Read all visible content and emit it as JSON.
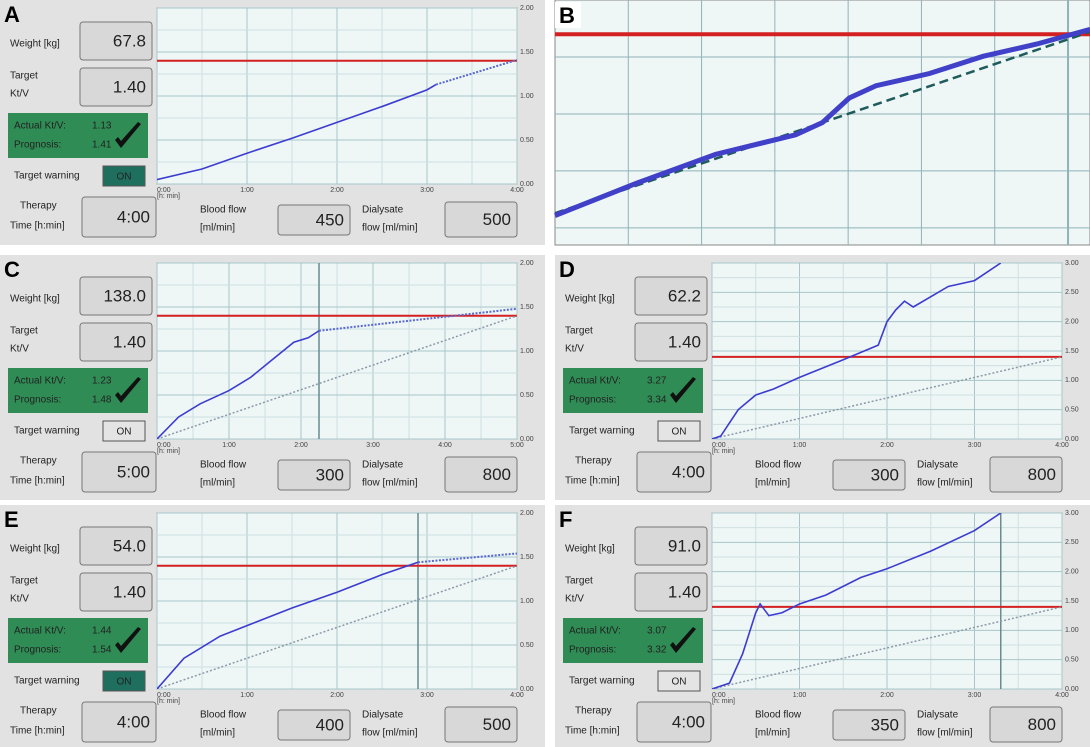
{
  "panels": [
    {
      "letter": "A",
      "labels": {
        "weight": "Weight [kg]",
        "target": "Target",
        "ktv": "Kt/V",
        "actual": "Actual Kt/V:",
        "prognosis": "Prognosis:",
        "warning": "Target warning",
        "therapy": "Therapy",
        "time": "Time [h:min]",
        "blood": "Blood flow",
        "blood_unit": "[ml/min]",
        "dialysate": "Dialysate",
        "dialysate_unit": "flow [ml/min]"
      },
      "values": {
        "weight": "67.8",
        "target": "1.40",
        "actual": "1.13",
        "prognosis": "1.41",
        "warning": "ON",
        "therapy": "4:00",
        "blood": "450",
        "dialysate": "500"
      },
      "warning_fill": "#1f6f5f",
      "chart": {
        "xlim": [
          0,
          4
        ],
        "ylim": [
          0,
          2
        ],
        "xticks": [
          {
            "value": 0,
            "label": "0:00"
          },
          {
            "value": 1,
            "label": "1:00"
          },
          {
            "value": 2,
            "label": "2:00"
          },
          {
            "value": 3,
            "label": "3:00"
          },
          {
            "value": 4,
            "label": "4:00"
          }
        ],
        "x_unit": "[h: min]",
        "yticks": [
          {
            "value": 0,
            "label": "0.00"
          },
          {
            "value": 0.5,
            "label": "0.50"
          },
          {
            "value": 1,
            "label": "1.00"
          },
          {
            "value": 1.5,
            "label": "1.50"
          },
          {
            "value": 2,
            "label": "2.00"
          }
        ],
        "target": 1.4,
        "actual": {
          "x": [
            0,
            0.5,
            1,
            1.5,
            2,
            2.5,
            3,
            3.1
          ],
          "y": [
            0.05,
            0.17,
            0.35,
            0.52,
            0.7,
            0.88,
            1.07,
            1.13
          ]
        },
        "projection": {
          "x": [
            3.1,
            4
          ],
          "y": [
            1.13,
            1.41
          ]
        }
      }
    },
    {
      "letter": "B",
      "chart": {
        "xlim": [
          0,
          1
        ],
        "ylim": [
          0,
          1
        ],
        "target": 0.86,
        "actual": {
          "x": [
            0,
            0.15,
            0.3,
            0.45,
            0.5,
            0.55,
            0.6,
            0.7,
            0.8,
            0.9,
            1
          ],
          "y": [
            0.12,
            0.25,
            0.37,
            0.45,
            0.5,
            0.6,
            0.65,
            0.7,
            0.77,
            0.82,
            0.88
          ]
        },
        "projection": {
          "x": [
            0,
            1
          ],
          "y": [
            0.13,
            0.87
          ]
        }
      }
    },
    {
      "letter": "C",
      "labels": {
        "weight": "Weight [kg]",
        "target": "Target",
        "ktv": "Kt/V",
        "actual": "Actual Kt/V:",
        "prognosis": "Prognosis:",
        "warning": "Target warning",
        "therapy": "Therapy",
        "time": "Time [h:min]",
        "blood": "Blood flow",
        "blood_unit": "[ml/min]",
        "dialysate": "Dialysate",
        "dialysate_unit": "flow [ml/min]"
      },
      "values": {
        "weight": "138.0",
        "target": "1.40",
        "actual": "1.23",
        "prognosis": "1.48",
        "warning": "ON",
        "therapy": "5:00",
        "blood": "300",
        "dialysate": "800"
      },
      "warning_fill": "#e4e4e4",
      "chart": {
        "xlim": [
          0,
          5
        ],
        "ylim": [
          0,
          2
        ],
        "xticks": [
          {
            "value": 0,
            "label": "0:00"
          },
          {
            "value": 1,
            "label": "1:00"
          },
          {
            "value": 2,
            "label": "2:00"
          },
          {
            "value": 3,
            "label": "3:00"
          },
          {
            "value": 4,
            "label": "4:00"
          },
          {
            "value": 5,
            "label": "5:00"
          }
        ],
        "x_unit": "[h: min]",
        "yticks": [
          {
            "value": 0,
            "label": "0.00"
          },
          {
            "value": 0.5,
            "label": "0.50"
          },
          {
            "value": 1,
            "label": "1.00"
          },
          {
            "value": 1.5,
            "label": "1.50"
          },
          {
            "value": 2,
            "label": "2.00"
          }
        ],
        "target": 1.4,
        "cursor": 2.25,
        "actual": {
          "x": [
            0,
            0.3,
            0.6,
            1,
            1.3,
            1.6,
            1.9,
            2.1,
            2.25
          ],
          "y": [
            0,
            0.25,
            0.4,
            0.55,
            0.7,
            0.9,
            1.1,
            1.15,
            1.23
          ]
        },
        "projection": {
          "x": [
            2.25,
            5
          ],
          "y": [
            1.23,
            1.48
          ]
        },
        "reference": {
          "x": [
            0,
            5
          ],
          "y": [
            0,
            1.4
          ]
        }
      }
    },
    {
      "letter": "D",
      "labels": {
        "weight": "Weight [kg]",
        "target": "Target",
        "ktv": "Kt/V",
        "actual": "Actual Kt/V:",
        "prognosis": "Prognosis:",
        "warning": "Target warning",
        "therapy": "Therapy",
        "time": "Time [h:min]",
        "blood": "Blood flow",
        "blood_unit": "[ml/min]",
        "dialysate": "Dialysate",
        "dialysate_unit": "flow [ml/min]"
      },
      "values": {
        "weight": "62.2",
        "target": "1.40",
        "actual": "3.27",
        "prognosis": "3.34",
        "warning": "ON",
        "therapy": "4:00",
        "blood": "300",
        "dialysate": "800"
      },
      "warning_fill": "#e4e4e4",
      "chart": {
        "xlim": [
          0,
          4
        ],
        "ylim": [
          0,
          3
        ],
        "xticks": [
          {
            "value": 0,
            "label": "0:00"
          },
          {
            "value": 1,
            "label": "1:00"
          },
          {
            "value": 2,
            "label": "2:00"
          },
          {
            "value": 3,
            "label": "3:00"
          },
          {
            "value": 4,
            "label": "4:00"
          }
        ],
        "x_unit": "[h: min]",
        "yticks": [
          {
            "value": 0,
            "label": "0.00"
          },
          {
            "value": 0.5,
            "label": "0.50"
          },
          {
            "value": 1,
            "label": "1.00"
          },
          {
            "value": 1.5,
            "label": "1.50"
          },
          {
            "value": 2,
            "label": "2.00"
          },
          {
            "value": 2.5,
            "label": "2.50"
          },
          {
            "value": 3,
            "label": "3.00"
          }
        ],
        "target": 1.4,
        "actual": {
          "x": [
            0,
            0.1,
            0.3,
            0.5,
            0.7,
            1,
            1.5,
            1.9,
            2,
            2.1,
            2.2,
            2.3,
            2.7,
            3,
            3.3
          ],
          "y": [
            0,
            0.05,
            0.5,
            0.75,
            0.85,
            1.05,
            1.35,
            1.6,
            2,
            2.2,
            2.35,
            2.25,
            2.6,
            2.7,
            3
          ]
        },
        "reference": {
          "x": [
            0,
            4
          ],
          "y": [
            0,
            1.4
          ]
        }
      }
    },
    {
      "letter": "E",
      "labels": {
        "weight": "Weight [kg]",
        "target": "Target",
        "ktv": "Kt/V",
        "actual": "Actual Kt/V:",
        "prognosis": "Prognosis:",
        "warning": "Target warning",
        "therapy": "Therapy",
        "time": "Time [h:min]",
        "blood": "Blood flow",
        "blood_unit": "[ml/min]",
        "dialysate": "Dialysate",
        "dialysate_unit": "flow [ml/min]"
      },
      "values": {
        "weight": "54.0",
        "target": "1.40",
        "actual": "1.44",
        "prognosis": "1.54",
        "warning": "ON",
        "therapy": "4:00",
        "blood": "400",
        "dialysate": "500"
      },
      "warning_fill": "#1f6f5f",
      "chart": {
        "xlim": [
          0,
          4
        ],
        "ylim": [
          0,
          2
        ],
        "xticks": [
          {
            "value": 0,
            "label": "0:00"
          },
          {
            "value": 1,
            "label": "1:00"
          },
          {
            "value": 2,
            "label": "2:00"
          },
          {
            "value": 3,
            "label": "3:00"
          },
          {
            "value": 4,
            "label": "4:00"
          }
        ],
        "x_unit": "[h: min]",
        "yticks": [
          {
            "value": 0,
            "label": "0.00"
          },
          {
            "value": 0.5,
            "label": "0.50"
          },
          {
            "value": 1,
            "label": "1.00"
          },
          {
            "value": 1.5,
            "label": "1.50"
          },
          {
            "value": 2,
            "label": "2.00"
          }
        ],
        "target": 1.4,
        "cursor": 2.9,
        "actual": {
          "x": [
            0,
            0.3,
            0.7,
            1,
            1.5,
            2,
            2.5,
            2.9
          ],
          "y": [
            0,
            0.35,
            0.6,
            0.72,
            0.92,
            1.1,
            1.3,
            1.44
          ]
        },
        "projection": {
          "x": [
            2.9,
            4
          ],
          "y": [
            1.44,
            1.54
          ]
        },
        "reference": {
          "x": [
            0,
            4
          ],
          "y": [
            0,
            1.4
          ]
        }
      }
    },
    {
      "letter": "F",
      "labels": {
        "weight": "Weight [kg]",
        "target": "Target",
        "ktv": "Kt/V",
        "actual": "Actual Kt/V:",
        "prognosis": "Prognosis:",
        "warning": "Target warning",
        "therapy": "Therapy",
        "time": "Time [h:min]",
        "blood": "Blood flow",
        "blood_unit": "[ml/min]",
        "dialysate": "Dialysate",
        "dialysate_unit": "flow [ml/min]"
      },
      "values": {
        "weight": "91.0",
        "target": "1.40",
        "actual": "3.07",
        "prognosis": "3.32",
        "warning": "ON",
        "therapy": "4:00",
        "blood": "350",
        "dialysate": "800"
      },
      "warning_fill": "#e4e4e4",
      "chart": {
        "xlim": [
          0,
          4
        ],
        "ylim": [
          0,
          3
        ],
        "xticks": [
          {
            "value": 0,
            "label": "0:00"
          },
          {
            "value": 1,
            "label": "1:00"
          },
          {
            "value": 2,
            "label": "2:00"
          },
          {
            "value": 3,
            "label": "3:00"
          },
          {
            "value": 4,
            "label": "4:00"
          }
        ],
        "x_unit": "[h: min]",
        "yticks": [
          {
            "value": 0,
            "label": "0.00"
          },
          {
            "value": 0.5,
            "label": "0.50"
          },
          {
            "value": 1,
            "label": "1.00"
          },
          {
            "value": 1.5,
            "label": "1.50"
          },
          {
            "value": 2,
            "label": "2.00"
          },
          {
            "value": 2.5,
            "label": "2.50"
          },
          {
            "value": 3,
            "label": "3.00"
          }
        ],
        "target": 1.4,
        "cursor": 3.3,
        "actual": {
          "x": [
            0,
            0.2,
            0.35,
            0.5,
            0.55,
            0.65,
            0.8,
            1,
            1.3,
            1.7,
            2,
            2.5,
            3,
            3.3
          ],
          "y": [
            0,
            0.1,
            0.6,
            1.3,
            1.45,
            1.25,
            1.3,
            1.45,
            1.6,
            1.9,
            2.05,
            2.35,
            2.7,
            3
          ]
        },
        "reference": {
          "x": [
            0,
            4
          ],
          "y": [
            0,
            1.4
          ]
        }
      }
    }
  ]
}
